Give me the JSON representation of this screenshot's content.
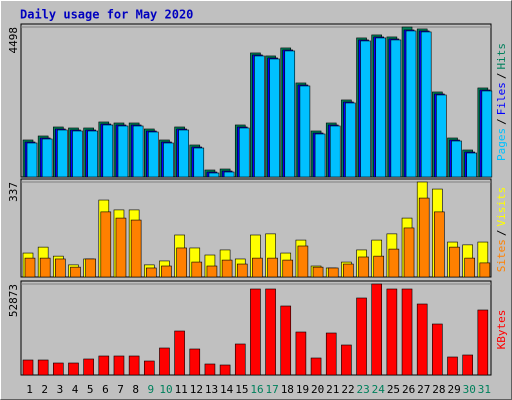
{
  "title": "Daily usage for May 2020",
  "chart_data": [
    {
      "type": "bar",
      "ylim": [
        0,
        4498
      ],
      "yticks": [
        4498
      ],
      "legend_separator": "/",
      "series": [
        {
          "name": "Hits",
          "color": "#00805C",
          "values": [
            1110,
            1230,
            1500,
            1470,
            1470,
            1650,
            1620,
            1620,
            1440,
            1110,
            1500,
            960,
            210,
            240,
            1560,
            3720,
            3630,
            3870,
            2820,
            1380,
            1620,
            2310,
            4170,
            4260,
            4200,
            4498,
            4440,
            2550,
            1170,
            810,
            2670
          ]
        },
        {
          "name": "Files",
          "color": "#0000FF",
          "values": [
            1050,
            1170,
            1440,
            1410,
            1410,
            1590,
            1560,
            1560,
            1380,
            1050,
            1440,
            900,
            150,
            180,
            1500,
            3660,
            3570,
            3810,
            2760,
            1320,
            1560,
            2250,
            4110,
            4200,
            4140,
            4410,
            4380,
            2490,
            1110,
            750,
            2610
          ]
        },
        {
          "name": "Pages",
          "color": "#00C0FF",
          "values": [
            1020,
            1140,
            1410,
            1380,
            1380,
            1560,
            1530,
            1530,
            1350,
            1020,
            1410,
            870,
            120,
            150,
            1470,
            3630,
            3540,
            3780,
            2730,
            1290,
            1530,
            2220,
            4080,
            4170,
            4110,
            4380,
            4350,
            2460,
            1080,
            720,
            2580
          ]
        }
      ]
    },
    {
      "type": "bar",
      "ylim": [
        0,
        337
      ],
      "yticks": [
        337
      ],
      "legend_separator": "/",
      "series": [
        {
          "name": "Visits",
          "color": "#FFFF00",
          "values": [
            85,
            106,
            74,
            43,
            64,
            273,
            238,
            238,
            43,
            57,
            149,
            103,
            78,
            96,
            64,
            149,
            153,
            85,
            131,
            39,
            32,
            53,
            96,
            131,
            153,
            209,
            337,
            312,
            124,
            114,
            124
          ]
        },
        {
          "name": "Sites",
          "color": "#FF8000",
          "values": [
            67,
            67,
            64,
            35,
            64,
            231,
            209,
            202,
            32,
            39,
            103,
            53,
            39,
            60,
            46,
            67,
            67,
            60,
            110,
            35,
            32,
            46,
            71,
            74,
            99,
            174,
            280,
            231,
            106,
            67,
            50
          ]
        }
      ]
    },
    {
      "type": "bar",
      "ylim": [
        0,
        52873
      ],
      "yticks": [
        52873
      ],
      "categories": [
        "1",
        "2",
        "3",
        "4",
        "5",
        "6",
        "7",
        "8",
        "9",
        "10",
        "11",
        "12",
        "13",
        "14",
        "15",
        "16",
        "17",
        "18",
        "19",
        "20",
        "21",
        "22",
        "23",
        "24",
        "25",
        "26",
        "27",
        "28",
        "29",
        "30",
        "31"
      ],
      "category_colors": [
        "#000000",
        "#000000",
        "#000000",
        "#000000",
        "#000000",
        "#000000",
        "#000000",
        "#000000",
        "#00805C",
        "#00805C",
        "#000000",
        "#000000",
        "#000000",
        "#000000",
        "#000000",
        "#00805C",
        "#00805C",
        "#000000",
        "#000000",
        "#000000",
        "#000000",
        "#000000",
        "#00805C",
        "#00805C",
        "#000000",
        "#000000",
        "#000000",
        "#000000",
        "#000000",
        "#00805C",
        "#00805C"
      ],
      "series": [
        {
          "name": "KBytes",
          "color": "#FF0000",
          "values": [
            8715,
            8715,
            6970,
            6970,
            9300,
            11040,
            11040,
            11040,
            8130,
            15690,
            25560,
            15110,
            6390,
            5810,
            18010,
            49970,
            49970,
            40090,
            24980,
            9880,
            24400,
            17430,
            44740,
            52873,
            49970,
            49970,
            41250,
            29630,
            10460,
            11620,
            37770
          ]
        }
      ]
    }
  ]
}
